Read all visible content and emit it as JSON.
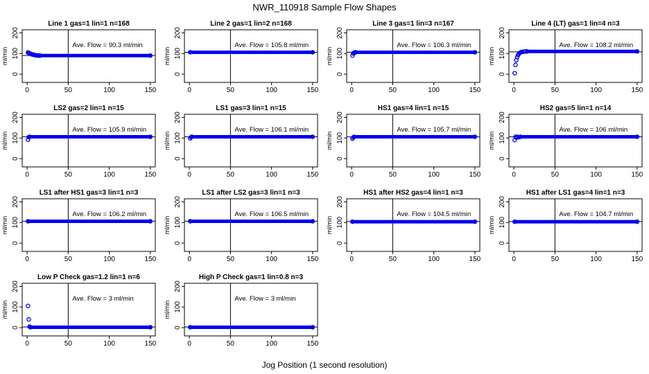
{
  "figure": {
    "title": "NWR_110918  Sample Flow Shapes",
    "xlabel": "Jog Position (1 second resolution)"
  },
  "chart_data": [
    {
      "type": "scatter",
      "title": "Line 1 gas=1 lin=1 n=168",
      "ylabel": "ml/min",
      "annotation": "Ave. Flow =  90.3  ml/min",
      "mean": 90.3,
      "xlim": [
        0,
        150
      ],
      "ylim": [
        0,
        200
      ],
      "xticks": [
        "0",
        "50",
        "100",
        "150"
      ],
      "yticks": [
        "0",
        "100",
        "200"
      ],
      "ref_x": 50,
      "x": [
        1,
        2,
        3,
        4,
        5,
        6,
        7,
        8,
        9,
        10,
        11,
        12,
        13,
        14,
        15,
        16,
        150
      ],
      "y": [
        105,
        103,
        101,
        99,
        97,
        96,
        95,
        94,
        93,
        92,
        91,
        91,
        90,
        90,
        90,
        90,
        90
      ]
    },
    {
      "type": "scatter",
      "title": "Line 2 gas=1 lin=2 n=168",
      "ylabel": "ml/min",
      "annotation": "Ave. Flow =  105.8  ml/min",
      "mean": 105.8,
      "xlim": [
        0,
        150
      ],
      "ylim": [
        0,
        200
      ],
      "xticks": [
        "0",
        "50",
        "100",
        "150"
      ],
      "yticks": [
        "0",
        "100",
        "200"
      ],
      "ref_x": 50,
      "x": [
        1,
        150
      ],
      "y": [
        106,
        106
      ]
    },
    {
      "type": "scatter",
      "title": "Line 3 gas=1 lin=3 n=167",
      "ylabel": "ml/min",
      "annotation": "Ave. Flow =  106.3  ml/min",
      "mean": 106.3,
      "xlim": [
        0,
        150
      ],
      "ylim": [
        0,
        200
      ],
      "xticks": [
        "0",
        "50",
        "100",
        "150"
      ],
      "yticks": [
        "0",
        "100",
        "200"
      ],
      "ref_x": 50,
      "x": [
        1,
        2,
        3,
        4,
        5,
        150
      ],
      "y": [
        90,
        100,
        104,
        106,
        106,
        106
      ]
    },
    {
      "type": "scatter",
      "title": "Line 4 (LT) gas=1 lin=4 n=3",
      "ylabel": "ml/min",
      "annotation": "Ave. Flow =  108.2  ml/min",
      "mean": 108.2,
      "xlim": [
        0,
        150
      ],
      "ylim": [
        0,
        200
      ],
      "xticks": [
        "0",
        "50",
        "100",
        "150"
      ],
      "yticks": [
        "0",
        "100",
        "200"
      ],
      "ref_x": 50,
      "x": [
        1,
        2,
        3,
        4,
        5,
        6,
        7,
        8,
        9,
        10,
        12,
        14,
        16,
        150
      ],
      "y": [
        5,
        45,
        68,
        82,
        92,
        98,
        102,
        105,
        107,
        108,
        109,
        110,
        110,
        110
      ]
    },
    {
      "type": "scatter",
      "title": "LS2 gas=2 lin=1 n=15",
      "ylabel": "ml/min",
      "annotation": "Ave. Flow =  105.9  ml/min",
      "mean": 105.9,
      "xlim": [
        0,
        150
      ],
      "ylim": [
        0,
        200
      ],
      "xticks": [
        "0",
        "50",
        "100",
        "150"
      ],
      "yticks": [
        "0",
        "100",
        "200"
      ],
      "ref_x": 50,
      "x": [
        1,
        2,
        3,
        150
      ],
      "y": [
        92,
        104,
        106,
        106
      ]
    },
    {
      "type": "scatter",
      "title": "LS1 gas=3 lin=1 n=15",
      "ylabel": "ml/min",
      "annotation": "Ave. Flow =  106.1  ml/min",
      "mean": 106.1,
      "xlim": [
        0,
        150
      ],
      "ylim": [
        0,
        200
      ],
      "xticks": [
        "0",
        "50",
        "100",
        "150"
      ],
      "yticks": [
        "0",
        "100",
        "200"
      ],
      "ref_x": 50,
      "x": [
        1,
        2,
        3,
        150
      ],
      "y": [
        98,
        104,
        106,
        106
      ]
    },
    {
      "type": "scatter",
      "title": "HS1 gas=4 lin=1 n=15",
      "ylabel": "ml/min",
      "annotation": "Ave. Flow =  105.7  ml/min",
      "mean": 105.7,
      "xlim": [
        0,
        150
      ],
      "ylim": [
        0,
        200
      ],
      "xticks": [
        "0",
        "50",
        "100",
        "150"
      ],
      "yticks": [
        "0",
        "100",
        "200"
      ],
      "ref_x": 50,
      "x": [
        1,
        2,
        3,
        150
      ],
      "y": [
        97,
        103,
        106,
        106
      ]
    },
    {
      "type": "scatter",
      "title": "HS2 gas=5 lin=1 n=14",
      "ylabel": "ml/min",
      "annotation": "Ave. Flow =  106  ml/min",
      "mean": 106,
      "xlim": [
        0,
        150
      ],
      "ylim": [
        0,
        200
      ],
      "xticks": [
        "0",
        "50",
        "100",
        "150"
      ],
      "yticks": [
        "0",
        "100",
        "200"
      ],
      "ref_x": 50,
      "x": [
        1,
        2,
        3,
        4,
        6,
        8,
        150
      ],
      "y": [
        90,
        106,
        102,
        106,
        104,
        106,
        106
      ]
    },
    {
      "type": "scatter",
      "title": "LS1 after HS1 gas=3 lin=1 n=3",
      "ylabel": "ml/min",
      "annotation": "Ave. Flow =  106.2  ml/min",
      "mean": 106.2,
      "xlim": [
        0,
        150
      ],
      "ylim": [
        0,
        200
      ],
      "xticks": [
        "0",
        "50",
        "100",
        "150"
      ],
      "yticks": [
        "0",
        "100",
        "200"
      ],
      "ref_x": 50,
      "x": [
        1,
        150
      ],
      "y": [
        106,
        106
      ]
    },
    {
      "type": "scatter",
      "title": "LS1 after LS2 gas=3 lin=1 n=3",
      "ylabel": "ml/min",
      "annotation": "Ave. Flow =  106.5  ml/min",
      "mean": 106.5,
      "xlim": [
        0,
        150
      ],
      "ylim": [
        0,
        200
      ],
      "xticks": [
        "0",
        "50",
        "100",
        "150"
      ],
      "yticks": [
        "0",
        "100",
        "200"
      ],
      "ref_x": 50,
      "x": [
        1,
        150
      ],
      "y": [
        106,
        106
      ]
    },
    {
      "type": "scatter",
      "title": "HS1 after HS2 gas=4 lin=1 n=3",
      "ylabel": "ml/min",
      "annotation": "Ave. Flow =  104.5  ml/min",
      "mean": 104.5,
      "xlim": [
        0,
        150
      ],
      "ylim": [
        0,
        200
      ],
      "xticks": [
        "0",
        "50",
        "100",
        "150"
      ],
      "yticks": [
        "0",
        "100",
        "200"
      ],
      "ref_x": 50,
      "x": [
        1,
        150
      ],
      "y": [
        104,
        104
      ]
    },
    {
      "type": "scatter",
      "title": "HS1 after LS1 gas=4 lin=1 n=3",
      "ylabel": "ml/min",
      "annotation": "Ave. Flow =  104.7  ml/min",
      "mean": 104.7,
      "xlim": [
        0,
        150
      ],
      "ylim": [
        0,
        200
      ],
      "xticks": [
        "0",
        "50",
        "100",
        "150"
      ],
      "yticks": [
        "0",
        "100",
        "200"
      ],
      "ref_x": 50,
      "x": [
        1,
        150
      ],
      "y": [
        104,
        104
      ]
    },
    {
      "type": "scatter",
      "title": "Low P Check gas=1.2 lin=1 n=6",
      "ylabel": "ml/min",
      "annotation": "Ave. Flow =  3  ml/min",
      "mean": 3,
      "xlim": [
        0,
        150
      ],
      "ylim": [
        0,
        200
      ],
      "xticks": [
        "0",
        "50",
        "100",
        "150"
      ],
      "yticks": [
        "0",
        "100",
        "200"
      ],
      "ref_x": 50,
      "x": [
        1,
        2,
        3,
        4,
        150
      ],
      "y": [
        105,
        40,
        5,
        2,
        2
      ]
    },
    {
      "type": "scatter",
      "title": "High P Check gas=1 lin=0.8 n=3",
      "ylabel": "ml/min",
      "annotation": "Ave. Flow =  3  ml/min",
      "mean": 3,
      "xlim": [
        0,
        150
      ],
      "ylim": [
        0,
        200
      ],
      "xticks": [
        "0",
        "50",
        "100",
        "150"
      ],
      "yticks": [
        "0",
        "100",
        "200"
      ],
      "ref_x": 50,
      "x": [
        1,
        150
      ],
      "y": [
        2,
        2
      ]
    }
  ],
  "colors": {
    "points": "#0000ee",
    "axes": "#000000",
    "background": "#ffffff"
  }
}
